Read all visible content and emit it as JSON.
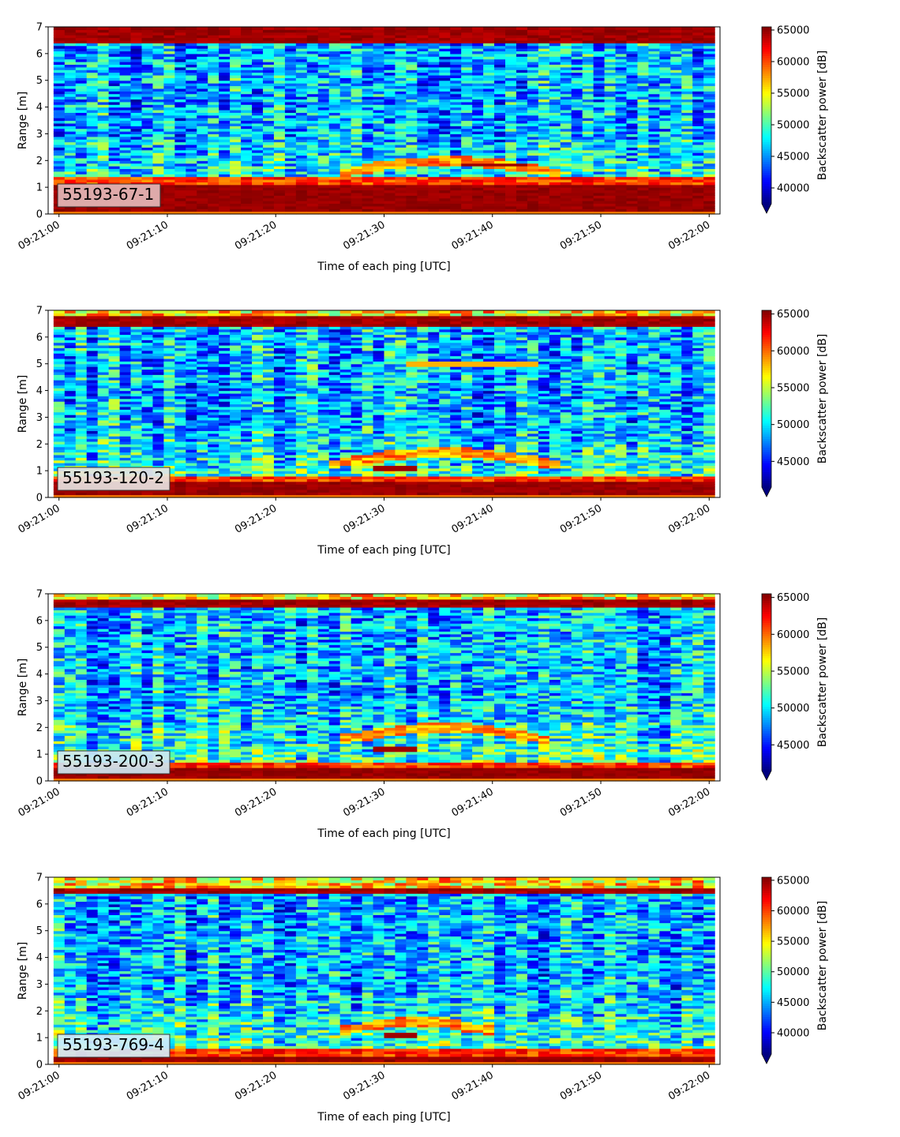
{
  "chart_data": [
    {
      "type": "heatmap",
      "annotation": "55193-67-1",
      "annotation_bg": "#e4b8b8",
      "xlabel": "Time of each ping [UTC]",
      "ylabel": "Range [m]",
      "colorbar_label": "Backscatter power [dB]",
      "colormap": "jet",
      "colorbar_range": [
        37500,
        65500
      ],
      "colorbar_ticks": [
        "40000",
        "45000",
        "50000",
        "55000",
        "60000",
        "65000"
      ],
      "colorbar_tick_values": [
        40000,
        45000,
        50000,
        55000,
        60000,
        65000
      ],
      "x_ticks": [
        "09:21:00",
        "09:21:10",
        "09:21:20",
        "09:21:30",
        "09:21:40",
        "09:21:50",
        "09:22:00"
      ],
      "x_range_seconds": [
        -1,
        61
      ],
      "y_ticks": [
        "0",
        "1",
        "2",
        "3",
        "4",
        "5",
        "6",
        "7"
      ],
      "ylim": [
        0,
        7
      ],
      "n_pings": 60,
      "range_bins": 70,
      "features": {
        "bottom_band_m": [
          0.15,
          1.15
        ],
        "top_band_m": [
          6.45,
          7.0
        ],
        "target_track": {
          "from_s": 25,
          "to_s": 46,
          "range_m": [
            1.5,
            2.5
          ],
          "peak_m": 2.0
        },
        "strong_target": {
          "from_s": 37,
          "to_s": 43,
          "range_m": 1.85
        }
      }
    },
    {
      "type": "heatmap",
      "annotation": "55193-120-2",
      "annotation_bg": "#e7e3e1",
      "xlabel": "Time of each ping [UTC]",
      "ylabel": "Range [m]",
      "colorbar_label": "Backscatter power [dB]",
      "colormap": "jet",
      "colorbar_range": [
        41500,
        65500
      ],
      "colorbar_ticks": [
        "45000",
        "50000",
        "55000",
        "60000",
        "65000"
      ],
      "colorbar_tick_values": [
        45000,
        50000,
        55000,
        60000,
        65000
      ],
      "x_ticks": [
        "09:21:00",
        "09:21:10",
        "09:21:20",
        "09:21:30",
        "09:21:40",
        "09:21:50",
        "09:22:00"
      ],
      "x_range_seconds": [
        -1,
        61
      ],
      "y_ticks": [
        "0",
        "1",
        "2",
        "3",
        "4",
        "5",
        "6",
        "7"
      ],
      "ylim": [
        0,
        7
      ],
      "n_pings": 60,
      "range_bins": 70,
      "features": {
        "bottom_band_m": [
          0.15,
          0.55
        ],
        "top_band_m": [
          6.45,
          6.85
        ],
        "target_track": {
          "from_s": 24,
          "to_s": 46,
          "range_m": [
            1.2,
            2.2
          ],
          "peak_m": 1.7
        },
        "strong_target": {
          "from_s": 28,
          "to_s": 33,
          "range_m": 1.15
        },
        "upper_track": {
          "from_s": 32,
          "to_s": 44,
          "range_m": 5.0
        }
      }
    },
    {
      "type": "heatmap",
      "annotation": "55193-200-3",
      "annotation_bg": "#cde7f2",
      "xlabel": "Time of each ping [UTC]",
      "ylabel": "Range [m]",
      "colorbar_label": "Backscatter power [dB]",
      "colormap": "jet",
      "colorbar_range": [
        41500,
        65500
      ],
      "colorbar_ticks": [
        "45000",
        "50000",
        "55000",
        "60000",
        "65000"
      ],
      "colorbar_tick_values": [
        45000,
        50000,
        55000,
        60000,
        65000
      ],
      "x_ticks": [
        "09:21:00",
        "09:21:10",
        "09:21:20",
        "09:21:30",
        "09:21:40",
        "09:21:50",
        "09:22:00"
      ],
      "x_range_seconds": [
        -1,
        61
      ],
      "y_ticks": [
        "0",
        "1",
        "2",
        "3",
        "4",
        "5",
        "6",
        "7"
      ],
      "ylim": [
        0,
        7
      ],
      "n_pings": 60,
      "range_bins": 70,
      "features": {
        "bottom_band_m": [
          0.15,
          0.45
        ],
        "top_band_m": [
          6.5,
          6.75
        ],
        "target_track": {
          "from_s": 25,
          "to_s": 45,
          "range_m": [
            1.5,
            2.4
          ],
          "peak_m": 2.0
        },
        "strong_target": {
          "from_s": 28,
          "to_s": 33,
          "range_m": 1.2
        }
      }
    },
    {
      "type": "heatmap",
      "annotation": "55193-769-4",
      "annotation_bg": "#d3ecf8",
      "xlabel": "Time of each ping [UTC]",
      "ylabel": "Range [m]",
      "colorbar_label": "Backscatter power [dB]",
      "colormap": "jet",
      "colorbar_range": [
        36500,
        65500
      ],
      "colorbar_ticks": [
        "40000",
        "45000",
        "50000",
        "55000",
        "60000",
        "65000"
      ],
      "colorbar_tick_values": [
        40000,
        45000,
        50000,
        55000,
        60000,
        65000
      ],
      "x_ticks": [
        "09:21:00",
        "09:21:10",
        "09:21:20",
        "09:21:30",
        "09:21:40",
        "09:21:50",
        "09:22:00"
      ],
      "x_range_seconds": [
        -1,
        61
      ],
      "y_ticks": [
        "0",
        "1",
        "2",
        "3",
        "4",
        "5",
        "6",
        "7"
      ],
      "ylim": [
        0,
        7
      ],
      "n_pings": 60,
      "range_bins": 70,
      "features": {
        "bottom_band_m": [
          0.15,
          0.35
        ],
        "top_band_m": [
          6.45,
          6.6
        ],
        "target_track": {
          "from_s": 25,
          "to_s": 40,
          "range_m": [
            1.2,
            2.0
          ],
          "peak_m": 1.6
        },
        "strong_target": {
          "from_s": 29,
          "to_s": 33,
          "range_m": 1.1
        }
      }
    }
  ]
}
